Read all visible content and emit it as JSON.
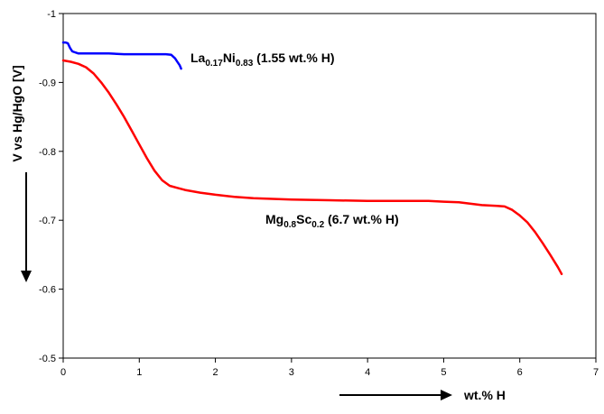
{
  "chart_data": {
    "type": "line",
    "xlabel": "wt.% H",
    "ylabel": "V vs Hg/HgO [V]",
    "xlim": [
      0,
      7
    ],
    "ylim": [
      -0.5,
      -1.0
    ],
    "y_axis_inverted": true,
    "x_ticks": [
      "0",
      "1",
      "2",
      "3",
      "4",
      "5",
      "6",
      "7"
    ],
    "y_ticks": [
      "-0.5",
      "-0.6",
      "-0.7",
      "-0.8",
      "-0.9",
      "-1"
    ],
    "grid": false,
    "legend": "none",
    "annotations": [
      {
        "parts": [
          {
            "text": "La"
          },
          {
            "text": "0.17",
            "sub": true
          },
          {
            "text": "Ni"
          },
          {
            "text": "0.83",
            "sub": true
          },
          {
            "text": " (1.55 wt.% H)"
          }
        ]
      },
      {
        "parts": [
          {
            "text": "Mg"
          },
          {
            "text": "0.8",
            "sub": true
          },
          {
            "text": "Sc"
          },
          {
            "text": "0.2",
            "sub": true
          },
          {
            "text": " (6.7 wt.% H)"
          }
        ]
      }
    ],
    "series": [
      {
        "color": "#0000ff",
        "x": [
          0.0,
          0.03,
          0.06,
          0.09,
          0.12,
          0.2,
          0.4,
          0.6,
          0.8,
          1.0,
          1.2,
          1.35,
          1.42,
          1.47,
          1.5,
          1.53,
          1.55
        ],
        "y": [
          -0.958,
          -0.958,
          -0.957,
          -0.95,
          -0.945,
          -0.942,
          -0.942,
          -0.942,
          -0.941,
          -0.941,
          -0.941,
          -0.941,
          -0.94,
          -0.935,
          -0.93,
          -0.925,
          -0.92
        ]
      },
      {
        "color": "#ff0000",
        "x": [
          0.0,
          0.1,
          0.2,
          0.3,
          0.4,
          0.5,
          0.6,
          0.7,
          0.8,
          0.9,
          1.0,
          1.1,
          1.2,
          1.3,
          1.4,
          1.5,
          1.6,
          1.8,
          2.0,
          2.25,
          2.5,
          3.0,
          3.5,
          4.0,
          4.5,
          4.8,
          5.0,
          5.2,
          5.5,
          5.7,
          5.8,
          5.9,
          6.0,
          6.1,
          6.2,
          6.3,
          6.4,
          6.5,
          6.55
        ],
        "y": [
          -0.932,
          -0.93,
          -0.927,
          -0.922,
          -0.913,
          -0.9,
          -0.885,
          -0.868,
          -0.85,
          -0.83,
          -0.81,
          -0.79,
          -0.772,
          -0.758,
          -0.75,
          -0.747,
          -0.744,
          -0.74,
          -0.737,
          -0.734,
          -0.732,
          -0.73,
          -0.729,
          -0.728,
          -0.728,
          -0.728,
          -0.727,
          -0.726,
          -0.722,
          -0.721,
          -0.72,
          -0.715,
          -0.707,
          -0.697,
          -0.683,
          -0.667,
          -0.65,
          -0.632,
          -0.622
        ]
      }
    ]
  }
}
